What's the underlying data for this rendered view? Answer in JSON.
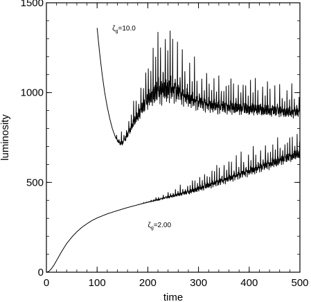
{
  "chart_data": {
    "type": "line",
    "title": "",
    "xlabel": "time",
    "ylabel": "luminosity",
    "xlim": [
      0,
      500
    ],
    "ylim": [
      0,
      1500
    ],
    "xticks": [
      0,
      100,
      200,
      300,
      400,
      500
    ],
    "yticks": [
      0,
      500,
      1000,
      1500
    ],
    "grid": false,
    "annotations": [
      {
        "text_main": "ζ",
        "text_sub": "g",
        "text_rest": "=10.0",
        "x": 130,
        "y": 1345
      },
      {
        "text_main": "ζ",
        "text_sub": "g",
        "text_rest": "=2.00",
        "x": 200,
        "y": 250
      }
    ],
    "series": [
      {
        "color": "#000000",
        "x": [
          100,
          105,
          110,
          115,
          120,
          125,
          130,
          135,
          140,
          145,
          150,
          155,
          160,
          170,
          180,
          190,
          200,
          210,
          220,
          230,
          240,
          250,
          260,
          270,
          280,
          290,
          300,
          320,
          340,
          360,
          380,
          400,
          420,
          440,
          460,
          480,
          500
        ],
        "y": [
          1360,
          1220,
          1100,
          1000,
          920,
          855,
          800,
          760,
          735,
          720,
          725,
          745,
          770,
          830,
          880,
          930,
          975,
          1010,
          1030,
          1040,
          1045,
          1040,
          1020,
          1000,
          985,
          970,
          960,
          945,
          935,
          930,
          925,
          920,
          915,
          910,
          905,
          900,
          900
        ],
        "spike_amp": [
          0,
          0,
          0,
          0,
          0,
          0,
          0,
          10,
          30,
          50,
          60,
          70,
          80,
          110,
          140,
          180,
          220,
          260,
          300,
          330,
          320,
          290,
          250,
          220,
          200,
          190,
          180,
          170,
          165,
          160,
          155,
          150,
          145,
          140,
          135,
          130,
          125
        ]
      },
      {
        "color": "#000000",
        "x": [
          0,
          5,
          10,
          15,
          20,
          30,
          40,
          50,
          60,
          70,
          80,
          90,
          100,
          120,
          140,
          160,
          180,
          200,
          220,
          240,
          260,
          280,
          300,
          320,
          340,
          360,
          380,
          400,
          420,
          440,
          460,
          480,
          500
        ],
        "y": [
          0,
          5,
          20,
          40,
          65,
          115,
          160,
          195,
          225,
          250,
          270,
          288,
          302,
          325,
          343,
          360,
          375,
          390,
          405,
          420,
          435,
          450,
          470,
          490,
          510,
          530,
          550,
          570,
          590,
          610,
          630,
          650,
          670
        ],
        "spike_amp": [
          0,
          0,
          0,
          0,
          0,
          0,
          0,
          0,
          0,
          0,
          0,
          0,
          0,
          0,
          0,
          0,
          0,
          5,
          15,
          25,
          40,
          55,
          70,
          80,
          90,
          95,
          100,
          105,
          110,
          115,
          120,
          120,
          120
        ]
      }
    ]
  }
}
